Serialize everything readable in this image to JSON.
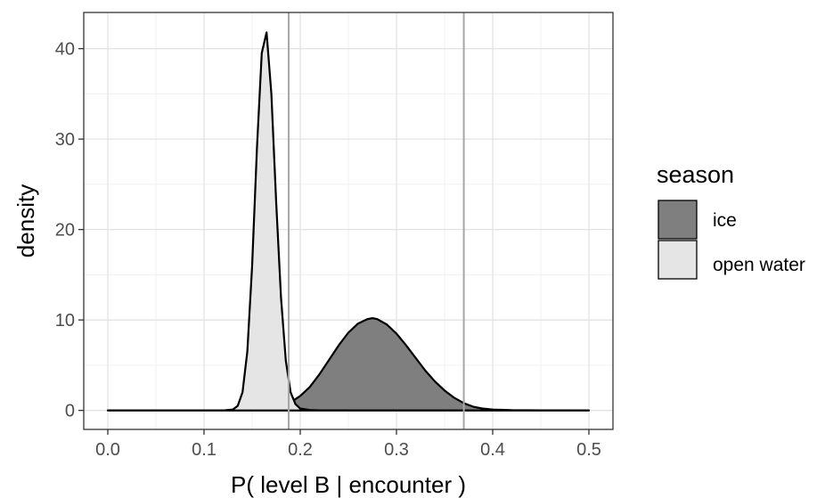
{
  "chart_data": {
    "type": "area",
    "title": "",
    "xlabel": "P( level B | encounter )",
    "ylabel": "density",
    "xlim": [
      -0.025,
      0.525
    ],
    "ylim": [
      -2.1,
      44
    ],
    "xticks": [
      0.0,
      0.1,
      0.2,
      0.3,
      0.4,
      0.5
    ],
    "xtick_labels": [
      "0.0",
      "0.1",
      "0.2",
      "0.3",
      "0.4",
      "0.5"
    ],
    "yticks": [
      0,
      10,
      20,
      30,
      40
    ],
    "ytick_labels": [
      "0",
      "10",
      "20",
      "30",
      "40"
    ],
    "grid": true,
    "legend": {
      "title": "season",
      "position": "right"
    },
    "series": [
      {
        "name": "ice",
        "fill": "#7f7f7f",
        "x": [
          0.0,
          0.14,
          0.16,
          0.18,
          0.19,
          0.2,
          0.21,
          0.22,
          0.23,
          0.24,
          0.25,
          0.26,
          0.27,
          0.275,
          0.28,
          0.29,
          0.3,
          0.31,
          0.32,
          0.33,
          0.34,
          0.35,
          0.36,
          0.37,
          0.38,
          0.39,
          0.4,
          0.42,
          0.45,
          0.5
        ],
        "y": [
          0,
          0,
          0.2,
          0.5,
          0.9,
          1.6,
          2.6,
          4.0,
          5.6,
          7.2,
          8.6,
          9.6,
          10.1,
          10.2,
          10.1,
          9.5,
          8.5,
          7.2,
          5.8,
          4.4,
          3.2,
          2.2,
          1.4,
          0.8,
          0.4,
          0.2,
          0.1,
          0.03,
          0.01,
          0
        ]
      },
      {
        "name": "open water",
        "fill": "#e5e5e5",
        "x": [
          0.0,
          0.12,
          0.13,
          0.135,
          0.14,
          0.145,
          0.15,
          0.155,
          0.16,
          0.165,
          0.17,
          0.175,
          0.18,
          0.185,
          0.19,
          0.195,
          0.2,
          0.21,
          0.22,
          0.25,
          0.5
        ],
        "y": [
          0,
          0,
          0.1,
          0.5,
          2.0,
          6.5,
          16.0,
          29.0,
          39.5,
          41.8,
          35.0,
          23.0,
          12.5,
          5.5,
          2.0,
          0.7,
          0.2,
          0.05,
          0.01,
          0,
          0
        ]
      }
    ],
    "vlines": [
      0.188,
      0.37
    ],
    "vline_color": "#a6a6a6"
  }
}
